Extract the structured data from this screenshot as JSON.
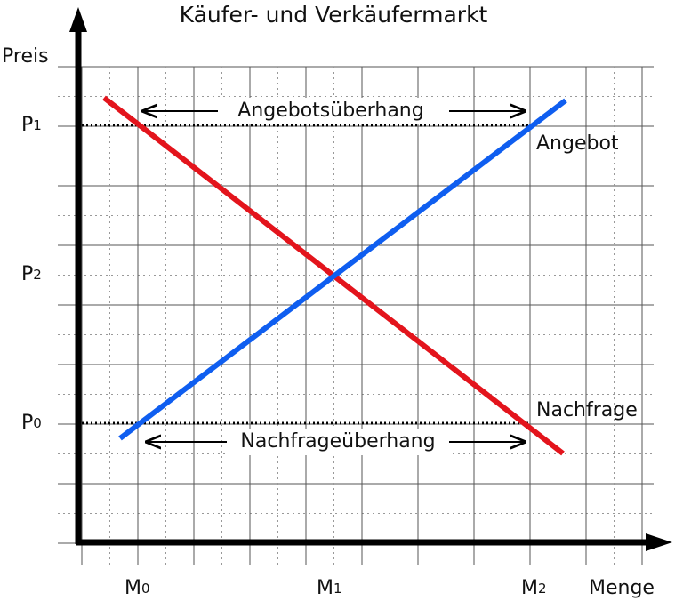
{
  "title": "Käufer- und Verkäufermarkt",
  "axes": {
    "y_label": "Preis",
    "x_label": "Menge"
  },
  "price_labels": [
    {
      "letter": "P",
      "sub": "1"
    },
    {
      "letter": "P",
      "sub": "2"
    },
    {
      "letter": "P",
      "sub": "0"
    }
  ],
  "quantity_labels": [
    {
      "letter": "M",
      "sub": "0"
    },
    {
      "letter": "M",
      "sub": "1"
    },
    {
      "letter": "M",
      "sub": "2"
    }
  ],
  "curves": {
    "supply": "Angebot",
    "demand": "Nachfrage"
  },
  "annotations": {
    "supply_surplus": "Angebotsüberhang",
    "demand_surplus": "Nachfrageüberhang"
  }
}
